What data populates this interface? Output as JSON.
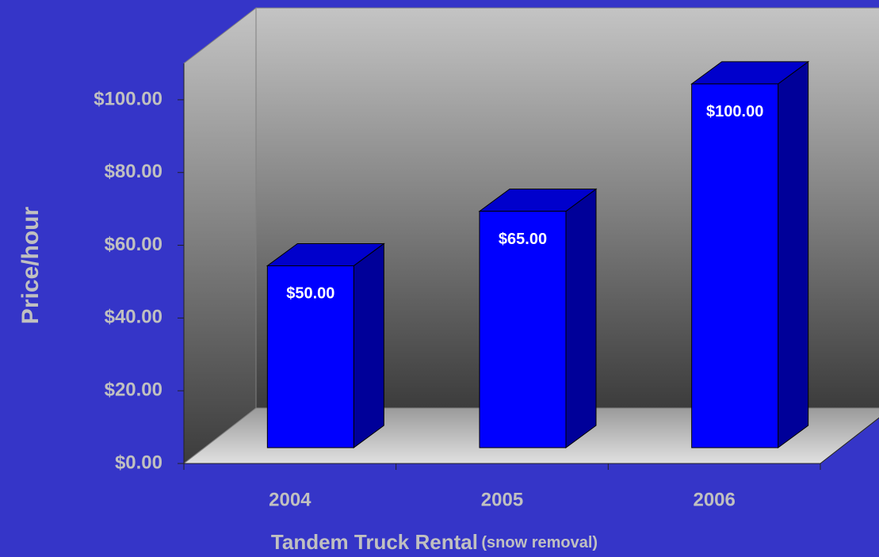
{
  "chart_data": {
    "type": "bar3d",
    "categories": [
      "2004",
      "2005",
      "2006"
    ],
    "values": [
      50,
      65,
      100
    ],
    "value_labels": [
      "$50.00",
      "$65.00",
      "$100.00"
    ],
    "color": "#0000ff",
    "ylim": [
      0,
      110
    ],
    "yticks": [
      {
        "value": 0,
        "label": "$0.00"
      },
      {
        "value": 20,
        "label": "$20.00"
      },
      {
        "value": 40,
        "label": "$40.00"
      },
      {
        "value": 60,
        "label": "$60.00"
      },
      {
        "value": 80,
        "label": "$80.00"
      },
      {
        "value": 100,
        "label": "$100.00"
      }
    ],
    "ylabel": "Price/hour",
    "xlabel": "Tandem Truck Rental",
    "xlabel_note": "(snow removal)"
  }
}
